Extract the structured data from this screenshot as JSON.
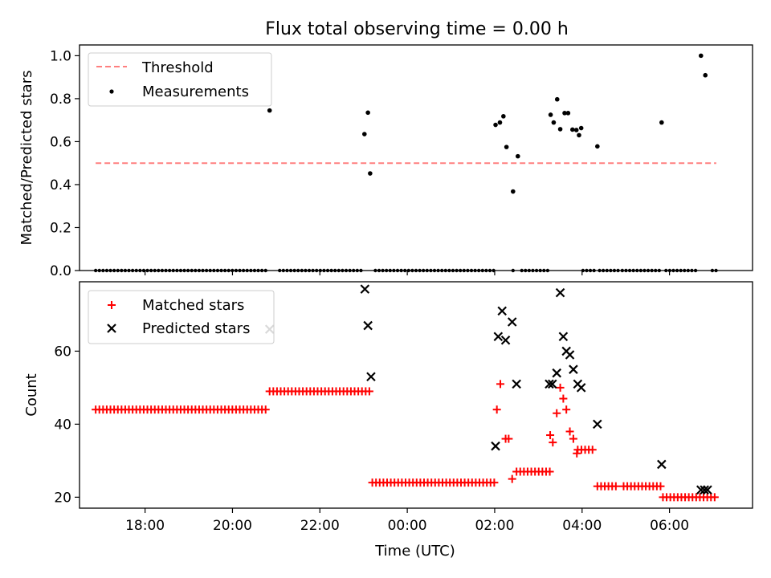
{
  "figure": {
    "title": "Flux total observing time = 0.00 h"
  },
  "chart_data": [
    {
      "type": "scatter",
      "xlabel": "",
      "ylabel": "Matched/Predicted stars",
      "xlim": [
        16.5,
        31.9
      ],
      "ylim": [
        0.0,
        1.05
      ],
      "yticks": [
        0.0,
        0.2,
        0.4,
        0.6,
        0.8,
        1.0
      ],
      "ytick_labels": [
        "0.0",
        "0.2",
        "0.4",
        "0.6",
        "0.8",
        "1.0"
      ],
      "legend": {
        "position": "top-left",
        "entries": [
          "Threshold",
          "Measurements"
        ]
      },
      "series": [
        {
          "name": "Threshold",
          "kind": "dashed-line",
          "color": "#ff7f7f",
          "x": [
            16.87,
            31.07
          ],
          "y": [
            0.5,
            0.5
          ]
        },
        {
          "name": "Measurements",
          "kind": "dots",
          "color": "#000000",
          "points": [
            [
              20.85,
              0.745
            ],
            [
              23.02,
              0.635
            ],
            [
              23.1,
              0.735
            ],
            [
              23.15,
              0.452
            ],
            [
              26.02,
              0.678
            ],
            [
              26.12,
              0.689
            ],
            [
              26.2,
              0.718
            ],
            [
              26.27,
              0.575
            ],
            [
              26.42,
              0.368
            ],
            [
              26.53,
              0.532
            ],
            [
              27.28,
              0.725
            ],
            [
              27.35,
              0.689
            ],
            [
              27.43,
              0.797
            ],
            [
              27.5,
              0.658
            ],
            [
              27.6,
              0.733
            ],
            [
              27.68,
              0.733
            ],
            [
              27.78,
              0.656
            ],
            [
              27.87,
              0.654
            ],
            [
              27.93,
              0.63
            ],
            [
              27.98,
              0.663
            ],
            [
              28.35,
              0.578
            ],
            [
              29.82,
              0.689
            ],
            [
              30.72,
              1.0
            ],
            [
              30.82,
              0.909
            ]
          ],
          "zero_segments": [
            [
              16.87,
              20.82
            ],
            [
              21.08,
              22.96
            ],
            [
              23.27,
              26.0
            ],
            [
              26.42,
              26.45
            ],
            [
              26.62,
              27.25
            ],
            [
              28.02,
              28.3
            ],
            [
              28.4,
              28.85
            ],
            [
              28.92,
              29.78
            ],
            [
              29.92,
              30.68
            ],
            [
              30.98,
              31.08
            ]
          ]
        }
      ]
    },
    {
      "type": "scatter",
      "xlabel": "Time (UTC)",
      "ylabel": "Count",
      "xlim": [
        16.5,
        31.9
      ],
      "ylim": [
        17.0,
        79.0
      ],
      "yticks": [
        20,
        40,
        60
      ],
      "ytick_labels": [
        "20",
        "40",
        "60"
      ],
      "xticks": [
        18,
        20,
        22,
        24,
        26,
        28,
        30
      ],
      "xtick_labels": [
        "18:00",
        "20:00",
        "22:00",
        "00:00",
        "02:00",
        "04:00",
        "06:00"
      ],
      "legend": {
        "position": "top-left",
        "entries": [
          "Matched stars",
          "Predicted stars"
        ]
      },
      "series": [
        {
          "name": "Matched stars",
          "marker": "plus",
          "color": "#ff0000",
          "runs": [
            {
              "x0": 16.87,
              "x1": 20.82,
              "y": 44
            },
            {
              "x0": 20.85,
              "x1": 23.15,
              "y": 49
            },
            {
              "x0": 23.2,
              "x1": 26.05,
              "y": 24
            },
            {
              "x0": 26.5,
              "x1": 27.3,
              "y": 27
            },
            {
              "x0": 27.9,
              "x1": 28.25,
              "y": 33
            },
            {
              "x0": 28.35,
              "x1": 28.85,
              "y": 23
            },
            {
              "x0": 28.95,
              "x1": 29.82,
              "y": 23
            },
            {
              "x0": 29.85,
              "x1": 31.08,
              "y": 20
            }
          ],
          "points": [
            [
              26.05,
              44
            ],
            [
              26.13,
              51
            ],
            [
              26.25,
              36
            ],
            [
              26.32,
              36
            ],
            [
              26.4,
              25
            ],
            [
              27.27,
              37
            ],
            [
              27.33,
              35
            ],
            [
              27.42,
              43
            ],
            [
              27.5,
              50
            ],
            [
              27.57,
              47
            ],
            [
              27.64,
              44
            ],
            [
              27.72,
              38
            ],
            [
              27.8,
              36
            ],
            [
              27.88,
              32
            ]
          ]
        },
        {
          "name": "Predicted stars",
          "marker": "x",
          "color": "#000000",
          "points": [
            [
              20.85,
              66
            ],
            [
              23.03,
              77
            ],
            [
              23.1,
              67
            ],
            [
              23.17,
              53
            ],
            [
              26.02,
              34
            ],
            [
              26.08,
              64
            ],
            [
              26.17,
              71
            ],
            [
              26.25,
              63
            ],
            [
              26.4,
              68
            ],
            [
              26.5,
              51
            ],
            [
              27.25,
              51
            ],
            [
              27.32,
              51
            ],
            [
              27.42,
              54
            ],
            [
              27.5,
              76
            ],
            [
              27.57,
              64
            ],
            [
              27.64,
              60
            ],
            [
              27.72,
              59
            ],
            [
              27.8,
              55
            ],
            [
              27.9,
              51
            ],
            [
              27.98,
              50
            ],
            [
              28.35,
              40
            ],
            [
              29.82,
              29
            ],
            [
              30.72,
              22
            ],
            [
              30.8,
              22
            ],
            [
              30.87,
              22
            ]
          ]
        }
      ]
    }
  ]
}
